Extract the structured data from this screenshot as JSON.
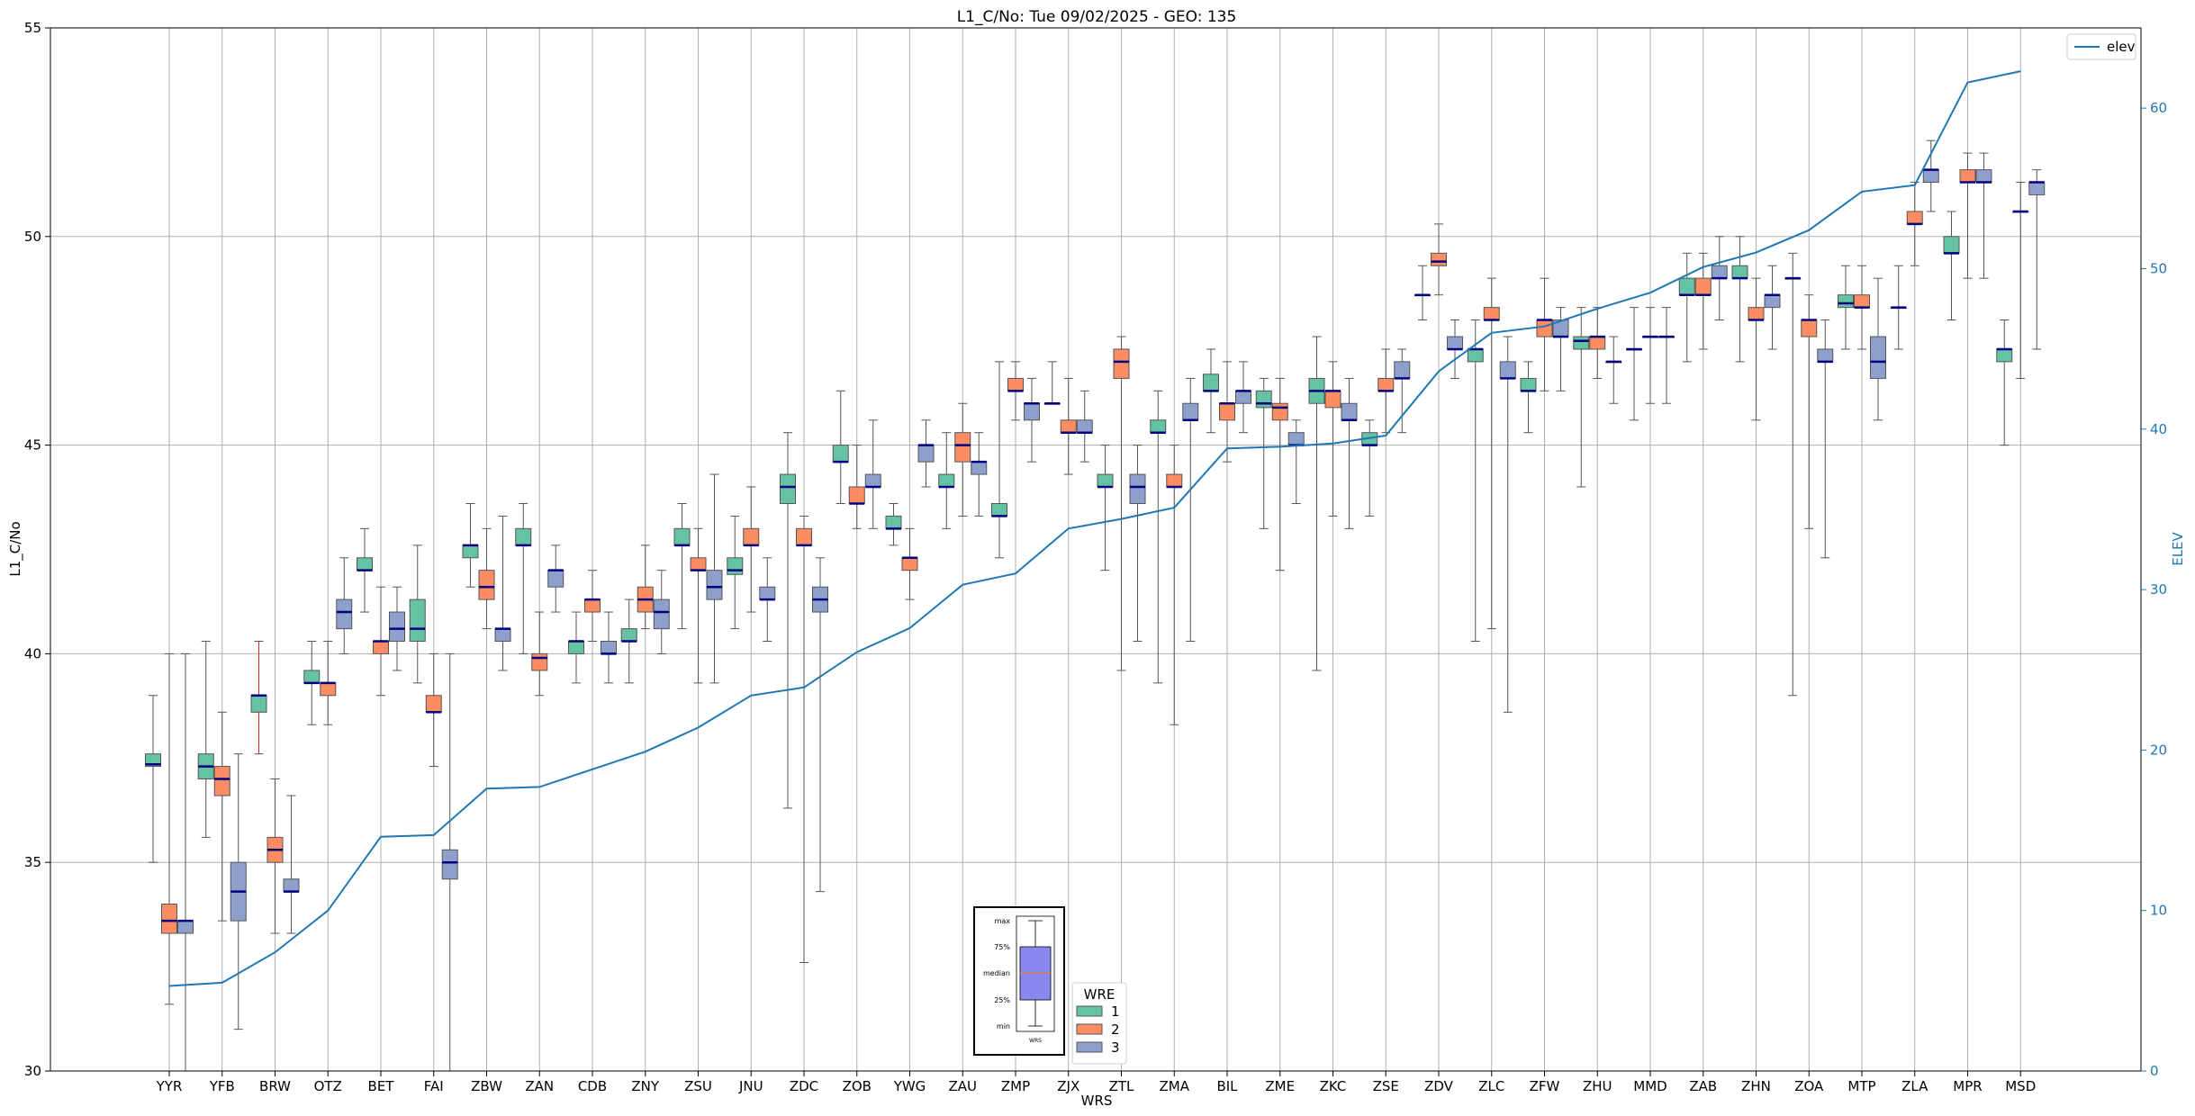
{
  "chart_data": {
    "type": "box",
    "title": "L1_C/No: Tue 09/02/2025 - GEO: 135",
    "xlabel": "WRS",
    "ylabel": "L1_C/No",
    "ylabel_right": "ELEV",
    "ylim": [
      30,
      55
    ],
    "ylim_right": [
      0,
      65
    ],
    "yticks": [
      30,
      35,
      40,
      45,
      50,
      55
    ],
    "yticks_right": [
      0,
      10,
      20,
      30,
      40,
      50,
      60
    ],
    "grid": true,
    "categories": [
      "YYR",
      "YFB",
      "BRW",
      "OTZ",
      "BET",
      "FAI",
      "ZBW",
      "ZAN",
      "CDB",
      "ZNY",
      "ZSU",
      "JNU",
      "ZDC",
      "ZOB",
      "YWG",
      "ZAU",
      "ZMP",
      "ZJX",
      "ZTL",
      "ZMA",
      "BIL",
      "ZME",
      "ZKC",
      "ZSE",
      "ZDV",
      "ZLC",
      "ZFW",
      "ZHU",
      "MMD",
      "ZAB",
      "ZHN",
      "ZOA",
      "MTP",
      "ZLA",
      "MPR",
      "MSD"
    ],
    "series": [
      {
        "name": "1",
        "color": "#66c2a5",
        "boxes": [
          [
            35.0,
            37.3,
            37.35,
            37.6,
            39.0
          ],
          [
            35.6,
            37.0,
            37.3,
            37.6,
            40.3
          ],
          [
            37.6,
            38.6,
            39.0,
            39.0,
            40.3
          ],
          [
            38.3,
            39.3,
            39.3,
            39.6,
            40.3
          ],
          [
            41.0,
            42.0,
            42.0,
            42.3,
            43.0
          ],
          [
            39.3,
            40.3,
            40.6,
            41.3,
            42.6
          ],
          [
            41.6,
            42.3,
            42.6,
            42.6,
            43.6
          ],
          [
            40.0,
            42.6,
            42.6,
            43.0,
            43.6
          ],
          [
            39.3,
            40.0,
            40.3,
            40.3,
            41.0
          ],
          [
            39.3,
            40.3,
            40.3,
            40.6,
            41.3
          ],
          [
            40.6,
            42.6,
            42.6,
            43.0,
            43.6
          ],
          [
            40.6,
            41.9,
            42.0,
            42.3,
            43.3
          ],
          [
            36.3,
            43.6,
            44.0,
            44.3,
            45.3
          ],
          [
            43.6,
            44.6,
            44.6,
            45.0,
            46.3
          ],
          [
            42.6,
            43.0,
            43.0,
            43.3,
            43.6
          ],
          [
            43.0,
            44.0,
            44.0,
            44.3,
            45.3
          ],
          [
            42.3,
            43.3,
            43.3,
            43.6,
            47.0
          ],
          [
            46.0,
            46.0,
            46.0,
            46.0,
            47.0
          ],
          [
            42.0,
            44.0,
            44.0,
            44.3,
            45.0
          ],
          [
            39.3,
            45.3,
            45.3,
            45.6,
            46.3
          ],
          [
            45.3,
            46.3,
            46.3,
            46.7,
            47.3
          ],
          [
            43.0,
            45.9,
            46.0,
            46.3,
            46.6
          ],
          [
            39.6,
            46.0,
            46.3,
            46.6,
            47.6
          ],
          [
            43.3,
            45.0,
            45.0,
            45.3,
            45.6
          ],
          [
            48.0,
            48.6,
            48.6,
            48.6,
            49.3
          ],
          [
            40.3,
            47.0,
            47.3,
            47.3,
            48.0
          ],
          [
            45.3,
            46.3,
            46.3,
            46.6,
            47.0
          ],
          [
            44.0,
            47.3,
            47.5,
            47.6,
            48.3
          ],
          [
            45.6,
            47.3,
            47.3,
            47.3,
            48.3
          ],
          [
            47.0,
            48.6,
            48.6,
            49.0,
            49.6
          ],
          [
            47.0,
            49.0,
            49.0,
            49.3,
            50.0
          ],
          [
            39.0,
            49.0,
            49.0,
            49.0,
            49.6
          ],
          [
            47.3,
            48.3,
            48.4,
            48.6,
            49.3
          ],
          [
            47.3,
            48.3,
            48.3,
            48.3,
            49.3
          ],
          [
            48.0,
            49.6,
            49.6,
            50.0,
            50.6
          ],
          [
            45.0,
            47.0,
            47.3,
            47.3,
            48.0
          ]
        ]
      },
      {
        "name": "2",
        "color": "#fc8d62",
        "boxes": [
          [
            31.6,
            33.3,
            33.6,
            34.0,
            40.0
          ],
          [
            33.6,
            36.6,
            37.0,
            37.3,
            38.6
          ],
          [
            33.3,
            35.0,
            35.3,
            35.6,
            37.0
          ],
          [
            38.3,
            39.0,
            39.3,
            39.3,
            40.3
          ],
          [
            39.0,
            40.0,
            40.3,
            40.3,
            41.6
          ],
          [
            37.3,
            38.6,
            38.6,
            39.0,
            40.0
          ],
          [
            40.6,
            41.3,
            41.6,
            42.0,
            43.0
          ],
          [
            39.0,
            39.6,
            39.9,
            40.0,
            41.0
          ],
          [
            40.3,
            41.0,
            41.3,
            41.3,
            42.0
          ],
          [
            40.6,
            41.0,
            41.3,
            41.6,
            42.6
          ],
          [
            39.3,
            42.0,
            42.0,
            42.3,
            43.0
          ],
          [
            41.0,
            42.6,
            42.6,
            43.0,
            44.0
          ],
          [
            32.6,
            42.6,
            42.6,
            43.0,
            43.3
          ],
          [
            43.0,
            43.6,
            43.6,
            44.0,
            45.0
          ],
          [
            41.3,
            42.0,
            42.3,
            42.3,
            43.0
          ],
          [
            43.3,
            44.6,
            45.0,
            45.3,
            46.0
          ],
          [
            45.6,
            46.3,
            46.3,
            46.6,
            47.0
          ],
          [
            44.3,
            45.3,
            45.3,
            45.6,
            46.6
          ],
          [
            39.6,
            46.6,
            47.0,
            47.3,
            47.6
          ],
          [
            38.3,
            44.0,
            44.0,
            44.3,
            45.0
          ],
          [
            44.6,
            45.6,
            46.0,
            46.0,
            47.0
          ],
          [
            42.0,
            45.6,
            45.9,
            46.0,
            46.6
          ],
          [
            43.3,
            45.9,
            46.3,
            46.3,
            47.0
          ],
          [
            45.3,
            46.3,
            46.3,
            46.6,
            47.3
          ],
          [
            48.6,
            49.3,
            49.4,
            49.6,
            50.3
          ],
          [
            40.6,
            48.0,
            48.0,
            48.3,
            49.0
          ],
          [
            46.3,
            47.6,
            48.0,
            48.0,
            49.0
          ],
          [
            46.6,
            47.3,
            47.6,
            47.6,
            48.3
          ],
          [
            46.0,
            47.6,
            47.6,
            47.6,
            48.3
          ],
          [
            47.3,
            48.6,
            48.6,
            49.0,
            49.6
          ],
          [
            45.6,
            48.0,
            48.0,
            48.3,
            49.0
          ],
          [
            43.0,
            47.6,
            48.0,
            48.0,
            48.6
          ],
          [
            47.3,
            48.3,
            48.3,
            48.6,
            49.3
          ],
          [
            49.3,
            50.3,
            50.3,
            50.6,
            51.3
          ],
          [
            49.0,
            51.3,
            51.3,
            51.6,
            52.0
          ],
          [
            46.6,
            50.6,
            50.6,
            50.6,
            51.3
          ]
        ]
      },
      {
        "name": "3",
        "color": "#8da0cb",
        "boxes": [
          [
            30.0,
            33.3,
            33.6,
            33.6,
            40.0
          ],
          [
            31.0,
            33.6,
            34.3,
            35.0,
            37.6
          ],
          [
            33.3,
            34.3,
            34.3,
            34.6,
            36.6
          ],
          [
            40.0,
            40.6,
            41.0,
            41.3,
            42.3
          ],
          [
            39.6,
            40.3,
            40.6,
            41.0,
            41.6
          ],
          [
            30.0,
            34.6,
            35.0,
            35.3,
            40.0
          ],
          [
            39.6,
            40.3,
            40.6,
            40.6,
            43.3
          ],
          [
            41.0,
            41.6,
            42.0,
            42.0,
            42.6
          ],
          [
            39.3,
            40.0,
            40.0,
            40.3,
            41.0
          ],
          [
            40.0,
            40.6,
            41.0,
            41.3,
            42.0
          ],
          [
            39.3,
            41.3,
            41.6,
            42.0,
            44.3
          ],
          [
            40.3,
            41.3,
            41.3,
            41.6,
            42.3
          ],
          [
            34.3,
            41.0,
            41.3,
            41.6,
            42.3
          ],
          [
            43.0,
            44.0,
            44.0,
            44.3,
            45.6
          ],
          [
            44.0,
            44.6,
            45.0,
            45.0,
            45.6
          ],
          [
            43.3,
            44.3,
            44.6,
            44.6,
            45.3
          ],
          [
            44.6,
            45.6,
            46.0,
            46.0,
            46.6
          ],
          [
            44.6,
            45.3,
            45.3,
            45.6,
            46.3
          ],
          [
            40.3,
            43.6,
            44.0,
            44.3,
            45.0
          ],
          [
            40.3,
            45.6,
            45.6,
            46.0,
            46.6
          ],
          [
            45.3,
            46.0,
            46.3,
            46.3,
            47.0
          ],
          [
            43.6,
            45.0,
            45.0,
            45.3,
            45.6
          ],
          [
            43.0,
            45.6,
            45.6,
            46.0,
            46.6
          ],
          [
            45.3,
            46.6,
            46.6,
            47.0,
            47.3
          ],
          [
            46.6,
            47.3,
            47.3,
            47.6,
            48.0
          ],
          [
            38.6,
            46.6,
            46.6,
            47.0,
            47.6
          ],
          [
            46.3,
            47.6,
            47.6,
            48.0,
            48.3
          ],
          [
            46.0,
            47.0,
            47.0,
            47.0,
            47.6
          ],
          [
            46.0,
            47.6,
            47.6,
            47.6,
            48.3
          ],
          [
            48.0,
            49.0,
            49.0,
            49.3,
            50.0
          ],
          [
            47.3,
            48.3,
            48.6,
            48.6,
            49.3
          ],
          [
            42.3,
            47.0,
            47.0,
            47.3,
            48.0
          ],
          [
            45.6,
            46.6,
            47.0,
            47.6,
            49.0
          ],
          [
            50.6,
            51.3,
            51.6,
            51.6,
            52.3
          ],
          [
            49.0,
            51.3,
            51.3,
            51.6,
            52.0
          ],
          [
            47.3,
            51.0,
            51.3,
            51.3,
            51.6
          ]
        ]
      }
    ],
    "elev": {
      "name": "elev",
      "color": "#1f77b4",
      "values": [
        5.3,
        5.5,
        7.4,
        10.0,
        14.6,
        14.7,
        17.6,
        17.7,
        18.8,
        19.9,
        21.4,
        23.4,
        23.9,
        26.1,
        27.6,
        30.3,
        31.0,
        33.8,
        34.4,
        35.1,
        38.8,
        38.9,
        39.1,
        39.6,
        43.6,
        46.0,
        46.4,
        47.5,
        48.5,
        50.1,
        51.0,
        52.4,
        54.8,
        55.2,
        61.6,
        62.3
      ]
    },
    "legend": {
      "position": "top-right",
      "line_label": "elev",
      "box_title": "WRE",
      "box_labels": [
        "1",
        "2",
        "3"
      ]
    },
    "key_box": {
      "labels": [
        "max",
        "75%",
        "median",
        "25%",
        "min"
      ],
      "xlabel": "WRS"
    },
    "outlier_color": "#d62728"
  }
}
